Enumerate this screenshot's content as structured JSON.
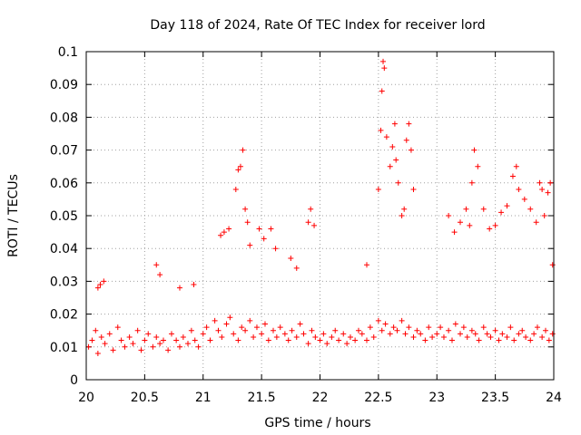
{
  "chart_data": {
    "type": "scatter",
    "title": "Day 118 of 2024, Rate Of TEC Index for receiver lord",
    "xlabel": "GPS time / hours",
    "ylabel": "ROTI / TECUs",
    "xlim": [
      20,
      24
    ],
    "ylim": [
      0,
      0.1
    ],
    "xticks": [
      "20",
      "20.5",
      "21",
      "21.5",
      "22",
      "22.5",
      "23",
      "23.5",
      "24"
    ],
    "yticks": [
      "0",
      "0.01",
      "0.02",
      "0.03",
      "0.04",
      "0.05",
      "0.06",
      "0.07",
      "0.08",
      "0.09",
      "0.1"
    ],
    "grid": true,
    "marker": "plus",
    "series_color": "#ff0000",
    "series": [
      {
        "x": [
          20.02,
          20.05,
          20.08,
          20.1,
          20.13,
          20.16,
          20.2,
          20.23,
          20.27,
          20.3,
          20.33,
          20.37,
          20.4,
          20.44,
          20.47,
          20.5,
          20.53,
          20.57,
          20.6,
          20.63,
          20.66,
          20.7,
          20.73,
          20.77,
          20.8,
          20.83,
          20.87,
          20.9,
          20.93,
          20.96,
          21.0,
          21.03,
          21.06,
          21.1,
          21.13,
          21.16,
          21.2,
          21.23,
          21.26,
          21.3,
          21.33,
          21.36,
          21.4,
          21.43,
          21.46,
          21.5,
          21.53,
          21.56,
          21.6,
          21.63,
          21.66,
          21.7,
          21.73,
          21.76,
          21.8,
          21.83,
          21.86,
          21.9,
          21.93,
          21.96,
          22.0,
          22.03,
          22.06,
          22.1,
          22.13,
          22.16,
          22.2,
          22.23,
          22.26,
          22.3,
          22.33,
          22.36,
          22.4,
          22.43,
          22.46,
          22.5,
          22.53,
          22.56,
          22.6,
          22.63,
          22.66,
          22.7,
          22.73,
          22.76,
          22.8,
          22.83,
          22.86,
          22.9,
          22.93,
          22.96,
          23.0,
          23.03,
          23.06,
          23.1,
          23.13,
          23.16,
          23.2,
          23.23,
          23.26,
          23.3,
          23.33,
          23.36,
          23.4,
          23.43,
          23.46,
          23.5,
          23.53,
          23.56,
          23.6,
          23.63,
          23.66,
          23.7,
          23.73,
          23.76,
          23.8,
          23.83,
          23.86,
          23.9,
          23.93,
          23.96,
          23.99,
          20.1,
          20.12,
          20.15,
          20.6,
          20.63,
          20.8,
          20.92,
          21.15,
          21.18,
          21.22,
          21.28,
          21.3,
          21.32,
          21.34,
          21.36,
          21.38,
          21.4,
          21.48,
          21.52,
          21.58,
          21.62,
          21.75,
          21.8,
          21.9,
          21.92,
          21.95,
          22.4,
          22.5,
          22.52,
          22.53,
          22.54,
          22.55,
          22.57,
          22.6,
          22.62,
          22.64,
          22.65,
          22.67,
          22.7,
          22.72,
          22.74,
          22.76,
          22.78,
          22.8,
          23.1,
          23.15,
          23.2,
          23.25,
          23.28,
          23.3,
          23.32,
          23.35,
          23.4,
          23.45,
          23.5,
          23.55,
          23.6,
          23.65,
          23.68,
          23.7,
          23.75,
          23.8,
          23.85,
          23.88,
          23.9,
          23.92,
          23.95,
          23.97,
          23.99
        ],
        "y": [
          0.01,
          0.012,
          0.015,
          0.008,
          0.013,
          0.011,
          0.014,
          0.009,
          0.016,
          0.012,
          0.01,
          0.013,
          0.011,
          0.015,
          0.009,
          0.012,
          0.014,
          0.01,
          0.013,
          0.011,
          0.012,
          0.009,
          0.014,
          0.012,
          0.01,
          0.013,
          0.011,
          0.015,
          0.012,
          0.01,
          0.014,
          0.016,
          0.012,
          0.018,
          0.015,
          0.013,
          0.017,
          0.019,
          0.014,
          0.012,
          0.016,
          0.015,
          0.018,
          0.013,
          0.016,
          0.014,
          0.017,
          0.012,
          0.015,
          0.013,
          0.016,
          0.014,
          0.012,
          0.015,
          0.013,
          0.017,
          0.014,
          0.011,
          0.015,
          0.013,
          0.012,
          0.014,
          0.011,
          0.013,
          0.015,
          0.012,
          0.014,
          0.011,
          0.013,
          0.012,
          0.015,
          0.014,
          0.012,
          0.016,
          0.013,
          0.018,
          0.015,
          0.017,
          0.014,
          0.016,
          0.015,
          0.018,
          0.014,
          0.016,
          0.013,
          0.015,
          0.014,
          0.012,
          0.016,
          0.013,
          0.014,
          0.016,
          0.013,
          0.015,
          0.012,
          0.017,
          0.014,
          0.016,
          0.013,
          0.015,
          0.014,
          0.012,
          0.016,
          0.014,
          0.013,
          0.015,
          0.012,
          0.014,
          0.013,
          0.016,
          0.012,
          0.014,
          0.015,
          0.013,
          0.012,
          0.014,
          0.016,
          0.013,
          0.015,
          0.012,
          0.014,
          0.028,
          0.029,
          0.03,
          0.035,
          0.032,
          0.028,
          0.029,
          0.044,
          0.045,
          0.046,
          0.058,
          0.064,
          0.065,
          0.07,
          0.052,
          0.048,
          0.041,
          0.046,
          0.043,
          0.046,
          0.04,
          0.037,
          0.034,
          0.048,
          0.052,
          0.047,
          0.035,
          0.058,
          0.076,
          0.088,
          0.097,
          0.095,
          0.074,
          0.065,
          0.071,
          0.078,
          0.067,
          0.06,
          0.05,
          0.052,
          0.073,
          0.078,
          0.07,
          0.058,
          0.05,
          0.045,
          0.048,
          0.052,
          0.047,
          0.06,
          0.07,
          0.065,
          0.052,
          0.046,
          0.047,
          0.051,
          0.053,
          0.062,
          0.065,
          0.058,
          0.055,
          0.052,
          0.048,
          0.06,
          0.058,
          0.05,
          0.057,
          0.06,
          0.035
        ]
      }
    ]
  }
}
